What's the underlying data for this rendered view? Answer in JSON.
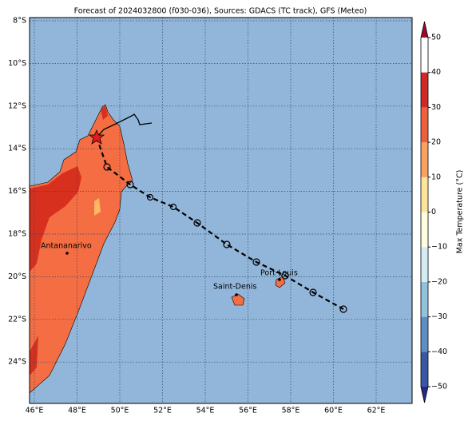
{
  "header": {
    "title": "Forecast of 2024032800 (f030-036), Sources: GDACS (TC track), GFS (Meteo)"
  },
  "map": {
    "lat_labels": [
      {
        "value": 8,
        "label": "8°S"
      },
      {
        "value": 10,
        "label": "10°S"
      },
      {
        "value": 12,
        "label": "12°S"
      },
      {
        "value": 14,
        "label": "14°S"
      },
      {
        "value": 16,
        "label": "16°S"
      },
      {
        "value": 18,
        "label": "18°S"
      },
      {
        "value": 20,
        "label": "20°S"
      },
      {
        "value": 22,
        "label": "22°S"
      },
      {
        "value": 24,
        "label": "24°S"
      }
    ],
    "lon_labels": [
      {
        "value": 46,
        "label": "46°E"
      },
      {
        "value": 48,
        "label": "48°E"
      },
      {
        "value": 50,
        "label": "50°E"
      },
      {
        "value": 52,
        "label": "52°E"
      },
      {
        "value": 54,
        "label": "54°E"
      },
      {
        "value": 56,
        "label": "56°E"
      },
      {
        "value": 58,
        "label": "58°E"
      },
      {
        "value": 60,
        "label": "60°E"
      },
      {
        "value": 62,
        "label": "62°E"
      }
    ],
    "cities": [
      "Antananarivo",
      "Saint-Denis",
      "Port-Louis"
    ]
  },
  "colorbar": {
    "label": "Max Temperature (°C)",
    "ticks": [
      {
        "value": -50,
        "label": "−50"
      },
      {
        "value": -40,
        "label": "−40"
      },
      {
        "value": -30,
        "label": "−30"
      },
      {
        "value": -20,
        "label": "−20"
      },
      {
        "value": -10,
        "label": "−10"
      },
      0,
      10,
      20,
      30,
      40,
      50
    ],
    "colors": [
      "#262a82",
      "#3a57a5",
      "#5f8fc2",
      "#92c1de",
      "#d4ecf4",
      "#fefedf",
      "#fee39a",
      "#fba05e",
      "#ef5f3c",
      "#cf2a28",
      "#9a0a2b"
    ]
  }
}
